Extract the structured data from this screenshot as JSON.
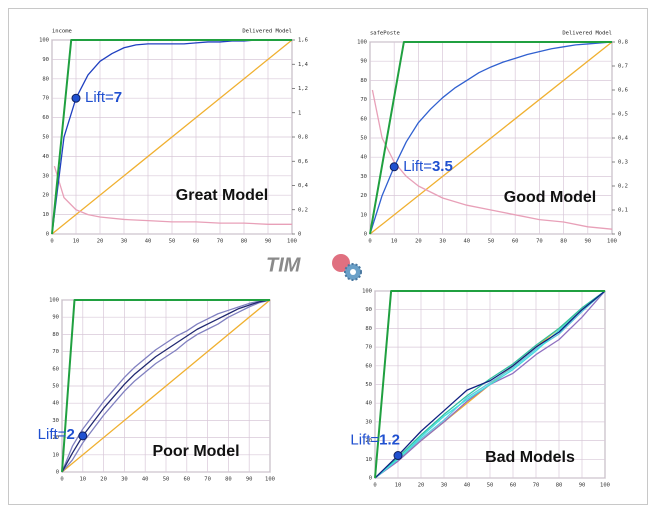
{
  "logo": {
    "text": "TIM"
  },
  "chart_data": [
    {
      "type": "line",
      "header_left": "income",
      "header_right": "Delivered Model",
      "xlim": [
        0,
        100
      ],
      "xticks": [
        0,
        10,
        20,
        30,
        40,
        50,
        60,
        70,
        80,
        90,
        100
      ],
      "ylim": [
        0,
        100
      ],
      "yticks": [
        0,
        10,
        20,
        30,
        40,
        50,
        60,
        70,
        80,
        90,
        100
      ],
      "y2lim": [
        0,
        1.6
      ],
      "y2ticks": [
        {
          "value": 0,
          "label": "0"
        },
        {
          "value": 0.2,
          "label": "0,2"
        },
        {
          "value": 0.4,
          "label": "0,4"
        },
        {
          "value": 0.6,
          "label": "0,6"
        },
        {
          "value": 0.8,
          "label": "0,8"
        },
        {
          "value": 1,
          "label": "1"
        },
        {
          "value": 1.2,
          "label": "1,2"
        },
        {
          "value": 1.4,
          "label": "1,4"
        },
        {
          "value": 1.6,
          "label": "1,6"
        }
      ],
      "grid": true,
      "series": [
        {
          "color": "#f0b030",
          "x": [
            0,
            100
          ],
          "values": [
            0,
            100
          ]
        },
        {
          "color": "#e8a0b8",
          "axis": "y2",
          "x": [
            1,
            5,
            10,
            15,
            20,
            30,
            40,
            50,
            60,
            70,
            80,
            90,
            100
          ],
          "values": [
            0.56,
            0.3,
            0.2,
            0.16,
            0.14,
            0.12,
            0.11,
            0.1,
            0.1,
            0.09,
            0.09,
            0.08,
            0.08
          ]
        },
        {
          "color": "#2040c0",
          "x": [
            0,
            5,
            10,
            15,
            20,
            25,
            30,
            35,
            40,
            45,
            50,
            55,
            60,
            65,
            70,
            75,
            80,
            85,
            90,
            95,
            100
          ],
          "values": [
            0,
            50,
            70,
            82,
            89,
            93,
            96,
            97.5,
            98,
            98,
            98,
            98,
            98.5,
            99,
            99,
            99.5,
            99.5,
            100,
            100,
            100,
            100
          ]
        },
        {
          "color": "#20a040",
          "x": [
            0,
            8,
            100
          ],
          "values": [
            0,
            100,
            100
          ]
        }
      ],
      "annotation": {
        "prefix": "Lift=",
        "lift": 7,
        "x": 10,
        "y": 70
      },
      "model_label": "Great Model"
    },
    {
      "type": "line",
      "header_left": "safePoste",
      "header_right": "Delivered Model",
      "xlim": [
        0,
        100
      ],
      "xticks": [
        0,
        10,
        20,
        30,
        40,
        50,
        60,
        70,
        80,
        90,
        100
      ],
      "ylim": [
        0,
        100
      ],
      "yticks": [
        0,
        10,
        20,
        30,
        40,
        50,
        60,
        70,
        80,
        90,
        100
      ],
      "y2lim": [
        0,
        0.8
      ],
      "y2ticks": [
        {
          "value": 0,
          "label": "0"
        },
        {
          "value": 0.1,
          "label": "0,1"
        },
        {
          "value": 0.2,
          "label": "0,2"
        },
        {
          "value": 0.3,
          "label": "0,3"
        },
        {
          "value": 0.4,
          "label": "0,4"
        },
        {
          "value": 0.5,
          "label": "0,5"
        },
        {
          "value": 0.6,
          "label": "0,6"
        },
        {
          "value": 0.7,
          "label": "0,7"
        },
        {
          "value": 0.8,
          "label": "0,8"
        }
      ],
      "grid": true,
      "series": [
        {
          "color": "#f0b030",
          "x": [
            0,
            100
          ],
          "values": [
            0,
            100
          ]
        },
        {
          "color": "#e8a0b8",
          "axis": "y2",
          "x": [
            1,
            5,
            10,
            15,
            20,
            30,
            40,
            50,
            60,
            70,
            80,
            90,
            100
          ],
          "values": [
            0.6,
            0.4,
            0.3,
            0.24,
            0.2,
            0.15,
            0.12,
            0.1,
            0.08,
            0.06,
            0.05,
            0.03,
            0.02
          ]
        },
        {
          "color": "#3060d0",
          "x": [
            0,
            5,
            10,
            15,
            20,
            25,
            30,
            35,
            40,
            45,
            50,
            55,
            60,
            65,
            70,
            75,
            80,
            85,
            90,
            95,
            100
          ],
          "values": [
            0,
            20,
            35,
            48,
            58,
            65,
            71,
            76,
            80,
            84,
            87,
            89.5,
            91.5,
            93.5,
            95,
            96.5,
            97.5,
            98.5,
            99,
            99.5,
            100
          ]
        },
        {
          "color": "#20a040",
          "x": [
            0,
            14,
            100
          ],
          "values": [
            0,
            100,
            100
          ]
        }
      ],
      "annotation": {
        "prefix": "Lift=",
        "lift": 3.5,
        "x": 10,
        "y": 35
      },
      "model_label": "Good Model"
    },
    {
      "type": "line",
      "xlim": [
        0,
        100
      ],
      "xticks": [
        0,
        10,
        20,
        30,
        40,
        50,
        60,
        70,
        80,
        90,
        100
      ],
      "ylim": [
        0,
        100
      ],
      "yticks": [
        0,
        10,
        20,
        30,
        40,
        50,
        60,
        70,
        80,
        90,
        100
      ],
      "grid": true,
      "series": [
        {
          "color": "#f0b030",
          "x": [
            0,
            100
          ],
          "values": [
            0,
            100
          ]
        },
        {
          "color": "#8080c0",
          "x": [
            0,
            5,
            10,
            15,
            20,
            25,
            30,
            35,
            40,
            45,
            50,
            55,
            60,
            65,
            70,
            75,
            80,
            85,
            90,
            95,
            100
          ],
          "values": [
            0,
            15,
            25,
            33,
            41,
            48,
            55,
            61,
            66,
            71,
            75,
            79,
            82,
            86,
            89,
            92,
            94,
            96,
            98,
            99.5,
            100
          ]
        },
        {
          "color": "#8080c0",
          "x": [
            0,
            5,
            10,
            15,
            20,
            25,
            30,
            35,
            40,
            45,
            50,
            55,
            60,
            65,
            70,
            75,
            80,
            85,
            90,
            95,
            100
          ],
          "values": [
            0,
            7,
            17,
            25,
            33,
            40,
            47,
            53,
            58,
            63,
            67,
            71,
            76,
            80,
            83,
            86,
            90,
            93,
            96,
            98.5,
            100
          ]
        },
        {
          "color": "#202870",
          "x": [
            0,
            5,
            10,
            15,
            20,
            25,
            30,
            35,
            40,
            45,
            50,
            55,
            60,
            65,
            70,
            75,
            80,
            85,
            90,
            95,
            100
          ],
          "values": [
            0,
            11,
            21,
            29,
            37,
            44,
            51,
            57,
            62,
            67,
            71,
            75,
            79,
            83,
            86,
            89,
            92,
            95,
            97,
            99,
            100
          ]
        },
        {
          "color": "#20a040",
          "x": [
            0,
            6,
            100
          ],
          "values": [
            0,
            100,
            100
          ]
        }
      ],
      "annotation": {
        "prefix": "Lift=",
        "lift": 2,
        "x": 10,
        "y": 21
      },
      "model_label": "Poor Model"
    },
    {
      "type": "line",
      "xlim": [
        0,
        100
      ],
      "xticks": [
        0,
        10,
        20,
        30,
        40,
        50,
        60,
        70,
        80,
        90,
        100
      ],
      "ylim": [
        0,
        100
      ],
      "yticks": [
        0,
        10,
        20,
        30,
        40,
        50,
        60,
        70,
        80,
        90,
        100
      ],
      "grid": true,
      "series": [
        {
          "color": "#f0b030",
          "x": [
            0,
            100
          ],
          "values": [
            0,
            100
          ]
        },
        {
          "color": "#9070c0",
          "x": [
            0,
            10,
            20,
            30,
            40,
            50,
            60,
            70,
            80,
            90,
            100
          ],
          "values": [
            0,
            9,
            20,
            30,
            41,
            50,
            56,
            66,
            74,
            86,
            100
          ]
        },
        {
          "color": "#60c8e0",
          "x": [
            0,
            10,
            20,
            30,
            40,
            50,
            60,
            70,
            80,
            90,
            100
          ],
          "values": [
            0,
            10,
            21,
            31,
            43,
            51,
            59,
            69,
            77,
            89,
            100
          ]
        },
        {
          "color": "#30c0a0",
          "x": [
            0,
            10,
            20,
            30,
            40,
            50,
            60,
            70,
            80,
            90,
            100
          ],
          "values": [
            0,
            11,
            23,
            34,
            44,
            53,
            61,
            71,
            80,
            91,
            100
          ]
        },
        {
          "color": "#40e0e0",
          "x": [
            0,
            10,
            20,
            30,
            40,
            50,
            60,
            70,
            80,
            90,
            100
          ],
          "values": [
            0,
            10,
            22,
            33,
            42,
            50,
            58,
            68,
            79,
            90,
            100
          ]
        },
        {
          "color": "#102080",
          "x": [
            0,
            10,
            20,
            30,
            40,
            50,
            60,
            70,
            80,
            90,
            100
          ],
          "values": [
            0,
            12,
            25,
            36,
            47,
            52,
            60,
            70,
            78,
            90,
            100
          ]
        },
        {
          "color": "#20a040",
          "x": [
            0,
            7,
            100
          ],
          "values": [
            0,
            100,
            100
          ]
        }
      ],
      "annotation": {
        "prefix": "Lift=",
        "lift": 1.2,
        "x": 10,
        "y": 12
      },
      "model_label": "Bad Models"
    }
  ]
}
